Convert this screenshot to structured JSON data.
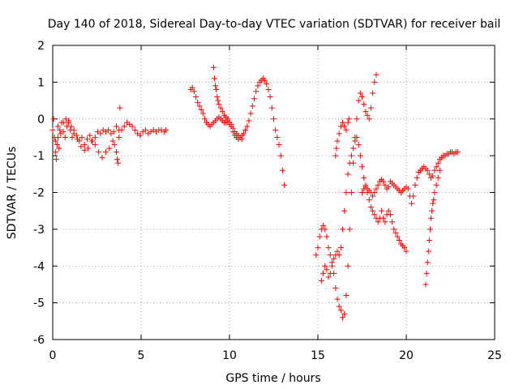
{
  "chart_data": {
    "type": "scatter",
    "title": "Day 140 of 2018, Sidereal Day-to-day VTEC variation (SDTVAR) for receiver bail",
    "xlabel": "GPS time / hours",
    "ylabel": "SDTVAR / TECUs",
    "xlim": [
      0,
      25
    ],
    "ylim": [
      -6,
      2
    ],
    "xticks": [
      "0",
      "5",
      "10",
      "15",
      "20",
      "25"
    ],
    "yticks": [
      "-6",
      "-5",
      "-4",
      "-3",
      "-2",
      "-1",
      "0",
      "1",
      "2"
    ],
    "grid": true,
    "marker": "plus",
    "color": "#ff0000",
    "series": [
      {
        "x": [
          0.0,
          0.15,
          0.3,
          0.45,
          0.6,
          0.75,
          0.9,
          1.05,
          1.2,
          1.35,
          1.5,
          1.65,
          1.8,
          1.95,
          2.1,
          2.25,
          2.4,
          2.55,
          2.7,
          2.85,
          3.0,
          3.15,
          3.3,
          3.45,
          3.6,
          3.75,
          3.9,
          4.05,
          4.2,
          4.35,
          4.5,
          4.65,
          4.8,
          4.95,
          5.1,
          5.25,
          5.4,
          5.55,
          5.7,
          5.85,
          6.0,
          6.15,
          6.3,
          6.4
        ],
        "y": [
          -0.3,
          -0.6,
          -0.2,
          -0.4,
          -0.1,
          0.0,
          -0.1,
          -0.2,
          -0.3,
          -0.45,
          -0.6,
          -0.5,
          -0.7,
          -0.55,
          -0.45,
          -0.6,
          -0.5,
          -0.35,
          -0.4,
          -0.3,
          -0.35,
          -0.3,
          -0.4,
          -0.35,
          -0.2,
          -0.5,
          -0.3,
          -0.2,
          -0.1,
          -0.15,
          -0.2,
          -0.3,
          -0.4,
          -0.45,
          -0.35,
          -0.3,
          -0.4,
          -0.35,
          -0.3,
          -0.35,
          -0.3,
          -0.3,
          -0.35,
          -0.3
        ]
      },
      {
        "x": [
          0.05,
          0.1,
          0.15,
          0.2,
          0.25,
          0.3,
          0.35,
          0.4,
          0.5,
          0.6,
          0.7,
          0.8,
          0.9,
          1.0,
          1.1,
          1.2,
          1.4,
          1.6,
          1.8,
          2.0,
          2.2,
          2.4,
          2.6,
          2.8,
          3.0,
          3.2,
          3.4,
          3.5,
          3.6,
          3.65,
          3.7,
          3.75,
          3.8
        ],
        "y": [
          0.0,
          -0.5,
          -0.9,
          -1.1,
          -0.7,
          -0.5,
          -0.8,
          -0.3,
          -0.1,
          -0.35,
          -0.5,
          -0.2,
          -0.05,
          -0.3,
          -0.5,
          -0.4,
          -0.55,
          -0.75,
          -0.85,
          -0.8,
          -0.6,
          -0.7,
          -0.9,
          -1.05,
          -0.9,
          -0.8,
          -0.6,
          -0.7,
          -0.9,
          -1.1,
          -1.2,
          -0.3,
          0.3
        ]
      },
      {
        "x": [
          7.8,
          7.9,
          8.0,
          8.1,
          8.2,
          8.3,
          8.4,
          8.5,
          8.6,
          8.7,
          8.8,
          8.9,
          9.0,
          9.1,
          9.2,
          9.3,
          9.4,
          9.5,
          9.6,
          9.7,
          9.8,
          9.9,
          10.0,
          10.1,
          10.2,
          10.3,
          10.4,
          10.5,
          10.6,
          10.7,
          10.8,
          10.9,
          11.0,
          11.1,
          11.2,
          11.3,
          11.4,
          11.5,
          11.6,
          11.7,
          11.8,
          11.9,
          12.0,
          12.1,
          12.2,
          12.3,
          12.4,
          12.5,
          12.6,
          12.7,
          12.8,
          12.9,
          13.0,
          13.1
        ],
        "y": [
          0.8,
          0.85,
          0.75,
          0.6,
          0.45,
          0.35,
          0.25,
          0.15,
          0.0,
          -0.1,
          -0.15,
          -0.2,
          -0.15,
          -0.1,
          -0.05,
          0.0,
          0.05,
          0.0,
          -0.05,
          -0.1,
          -0.1,
          -0.05,
          -0.15,
          -0.2,
          -0.35,
          -0.45,
          -0.5,
          -0.55,
          -0.5,
          -0.45,
          -0.4,
          -0.3,
          -0.2,
          -0.05,
          0.15,
          0.35,
          0.55,
          0.75,
          0.9,
          1.0,
          1.05,
          1.1,
          1.05,
          0.95,
          0.8,
          0.6,
          0.3,
          0.0,
          -0.3,
          -0.5,
          -0.7,
          -1.0,
          -1.4,
          -1.8
        ]
      },
      {
        "x": [
          9.1,
          9.15,
          9.2,
          9.25,
          9.3,
          9.35,
          9.4,
          9.5,
          9.6,
          9.7,
          9.8,
          9.9,
          10.0,
          10.1,
          10.2,
          10.3,
          10.4,
          10.5,
          10.6,
          10.7
        ],
        "y": [
          1.4,
          1.1,
          0.9,
          0.8,
          0.6,
          0.5,
          0.4,
          0.3,
          0.2,
          0.1,
          0.05,
          0.0,
          -0.1,
          -0.15,
          -0.25,
          -0.35,
          -0.4,
          -0.45,
          -0.5,
          -0.55
        ]
      },
      {
        "x": [
          14.9,
          15.0,
          15.1,
          15.2,
          15.3,
          15.4,
          15.5,
          15.6,
          15.7,
          15.8,
          15.9,
          16.0,
          16.1,
          16.2,
          16.3,
          16.4,
          16.5,
          16.6,
          16.7,
          16.8,
          16.9,
          17.0,
          17.1,
          17.2,
          17.3,
          17.4,
          17.5,
          17.6,
          17.7,
          17.8,
          17.9,
          18.0,
          18.1,
          18.2,
          18.3
        ],
        "y": [
          -3.7,
          -3.5,
          -3.2,
          -3.0,
          -2.9,
          -3.0,
          -3.2,
          -3.5,
          -3.7,
          -3.9,
          -4.2,
          -4.6,
          -4.9,
          -5.1,
          -5.2,
          -5.4,
          -5.3,
          -4.8,
          -4.0,
          -3.0,
          -2.0,
          -1.2,
          -0.5,
          0.0,
          0.5,
          0.7,
          0.6,
          0.4,
          0.2,
          0.1,
          0.0,
          0.3,
          0.7,
          1.0,
          1.2
        ]
      },
      {
        "x": [
          15.2,
          15.3,
          15.4,
          15.5,
          15.6,
          15.7,
          15.8,
          15.9,
          16.0,
          16.1,
          16.2,
          16.3,
          16.4,
          16.5,
          16.6,
          16.7,
          16.8,
          16.9,
          17.0,
          17.1,
          17.2,
          17.3,
          17.4,
          17.5,
          17.6,
          17.7,
          17.8,
          17.9,
          18.0,
          18.1,
          18.2,
          18.3,
          18.4,
          18.5,
          18.6,
          18.7,
          18.8,
          18.9,
          19.0,
          19.1,
          19.2,
          19.3,
          19.4,
          19.5,
          19.6,
          19.7,
          19.8,
          19.9,
          20.0
        ],
        "y": [
          -4.4,
          -4.2,
          -4.0,
          -4.1,
          -4.3,
          -4.2,
          -4.0,
          -3.8,
          -3.7,
          -3.6,
          -3.7,
          -3.5,
          -3.0,
          -2.5,
          -2.0,
          -1.5,
          -1.2,
          -1.0,
          -0.8,
          -0.6,
          -0.5,
          -0.7,
          -1.0,
          -1.3,
          -1.6,
          -1.8,
          -2.0,
          -2.2,
          -2.4,
          -2.5,
          -2.6,
          -2.7,
          -2.8,
          -2.7,
          -2.5,
          -2.7,
          -2.8,
          -2.6,
          -2.5,
          -2.6,
          -2.8,
          -3.0,
          -3.1,
          -3.2,
          -3.3,
          -3.4,
          -3.45,
          -3.5,
          -3.6
        ]
      },
      {
        "x": [
          16.0,
          16.05,
          16.1,
          16.2,
          16.3,
          16.4,
          16.5,
          16.6,
          16.7,
          16.75
        ],
        "y": [
          -1.0,
          -0.8,
          -0.6,
          -0.4,
          -0.2,
          -0.1,
          -0.2,
          -0.3,
          -0.1,
          0.0
        ]
      },
      {
        "x": [
          17.5,
          17.6,
          17.7,
          17.8,
          17.9,
          18.0,
          18.1,
          18.2,
          18.3,
          18.4,
          18.5,
          18.6,
          18.7,
          18.8,
          18.9,
          19.0,
          19.1,
          19.2,
          19.3,
          19.4,
          19.5,
          19.6,
          19.7,
          19.8,
          19.9,
          20.0,
          20.1,
          20.2,
          20.3,
          20.4,
          20.5,
          20.6,
          20.7,
          20.8,
          20.9,
          21.0,
          21.1,
          21.2,
          21.3,
          21.4,
          21.5,
          21.6,
          21.7,
          21.8,
          21.9,
          22.0,
          22.1,
          22.2,
          22.3,
          22.4,
          22.5,
          22.6,
          22.7,
          22.8,
          22.9
        ],
        "y": [
          -2.0,
          -1.9,
          -1.85,
          -1.9,
          -1.95,
          -2.0,
          -2.1,
          -2.0,
          -1.9,
          -1.8,
          -1.7,
          -1.65,
          -1.7,
          -1.8,
          -1.9,
          -1.85,
          -1.7,
          -1.75,
          -1.8,
          -1.85,
          -1.9,
          -1.95,
          -2.0,
          -1.95,
          -1.9,
          -1.85,
          -1.9,
          -2.1,
          -2.3,
          -2.1,
          -1.8,
          -1.6,
          -1.45,
          -1.4,
          -1.35,
          -1.3,
          -1.35,
          -1.4,
          -1.5,
          -1.6,
          -1.55,
          -1.4,
          -1.3,
          -1.2,
          -1.1,
          -1.05,
          -1.0,
          -1.0,
          -0.95,
          -0.95,
          -0.9,
          -0.9,
          -0.95,
          -0.9,
          -0.9
        ]
      },
      {
        "x": [
          21.1,
          21.15,
          21.2,
          21.25,
          21.3,
          21.35,
          21.4,
          21.45,
          21.5,
          21.55,
          21.6,
          21.7,
          21.8,
          21.9
        ],
        "y": [
          -4.5,
          -4.2,
          -3.9,
          -3.6,
          -3.3,
          -3.0,
          -2.7,
          -2.5,
          -2.3,
          -2.2,
          -2.0,
          -1.8,
          -1.6,
          -1.4
        ]
      }
    ]
  }
}
